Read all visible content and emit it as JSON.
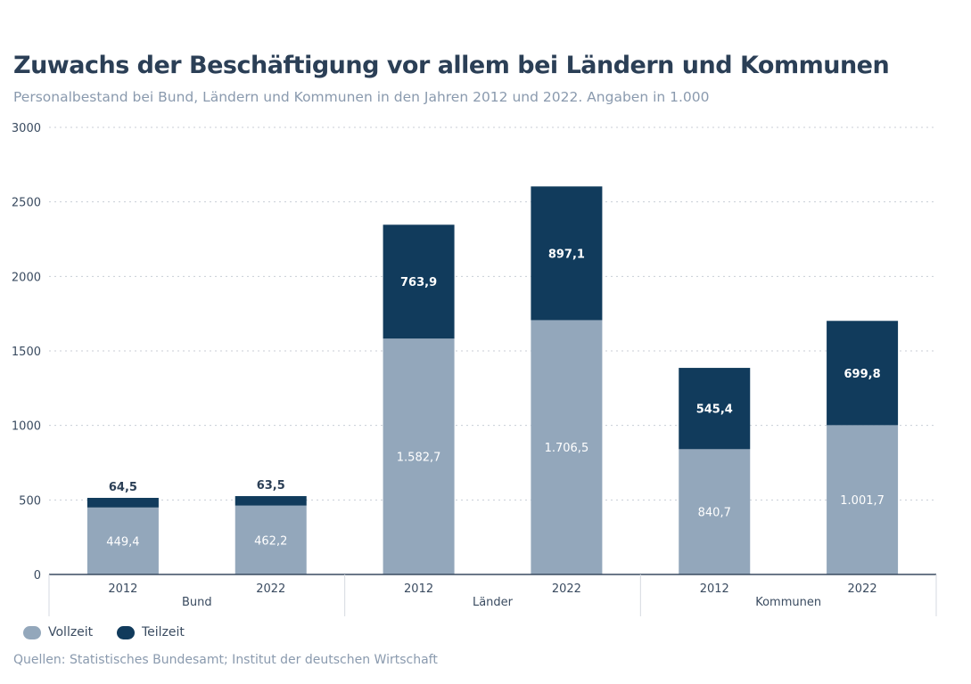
{
  "chart_data": {
    "type": "bar",
    "stacked": true,
    "title": "Zuwachs der Beschäftigung vor allem bei Ländern und Kommunen",
    "subtitle": "Personalbestand bei Bund, Ländern und Kommunen in den Jahren 2012 und 2022. Angaben in 1.000",
    "groups": [
      "Bund",
      "Länder",
      "Kommunen"
    ],
    "categories": [
      "2012",
      "2022",
      "2012",
      "2022",
      "2012",
      "2022"
    ],
    "series": [
      {
        "name": "Vollzeit",
        "color": "#93a7bb",
        "values": [
          449.4,
          462.2,
          1582.7,
          1706.5,
          840.7,
          1001.7
        ],
        "labels": [
          "449,4",
          "462,2",
          "1.582,7",
          "1.706,5",
          "840,7",
          "1.001,7"
        ]
      },
      {
        "name": "Teilzeit",
        "color": "#113b5c",
        "values": [
          64.5,
          63.5,
          763.9,
          897.1,
          545.4,
          699.8
        ],
        "labels": [
          "64,5",
          "63,5",
          "763,9",
          "897,1",
          "545,4",
          "699,8"
        ]
      }
    ],
    "ylim": [
      0,
      3000
    ],
    "yticks": [
      0,
      500,
      1000,
      1500,
      2000,
      2500,
      3000
    ],
    "grid": true,
    "legend": "bottom-left",
    "source": "Quellen: Statistisches Bundesamt; Institut der deutschen Wirtschaft"
  }
}
